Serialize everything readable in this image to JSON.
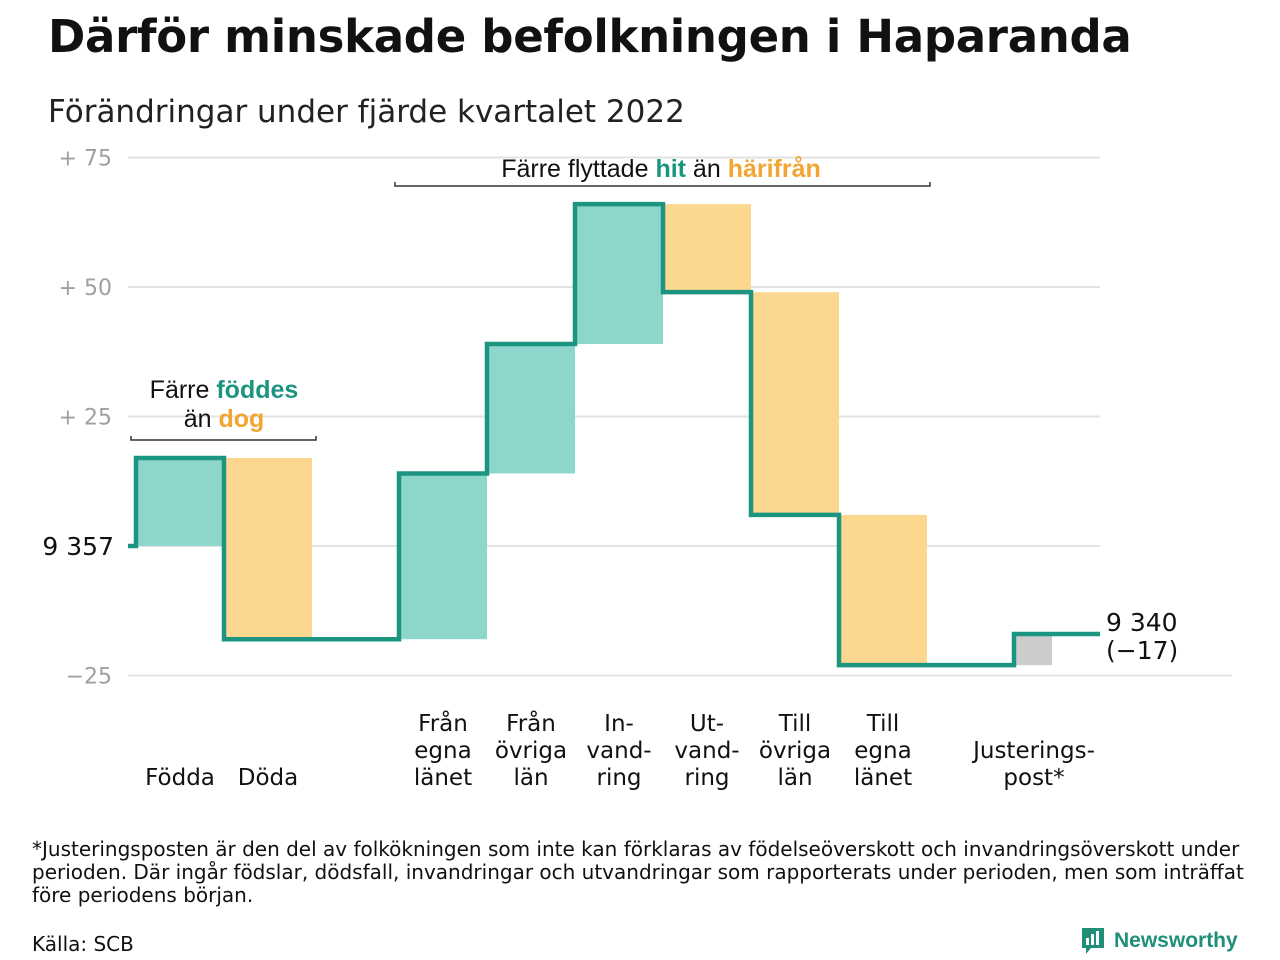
{
  "title": "Därför minskade befolkningen i Haparanda",
  "subtitle": "Förändringar under fjärde kvartalet 2022",
  "footnote": "*Justeringsposten är den del av folkökningen som inte kan förklaras av födelseöverskott och invandringsöverskott under perioden. Där ingår födslar, dödsfall, invandringar och utvandringar som rapporterats under perioden, men som inträffat före periodens början.",
  "source": "Källa: SCB",
  "brand": "Newsworthy",
  "colors": {
    "increase": "#8dd6cc",
    "decrease": "#fbd78f",
    "adjustment": "#cccccc",
    "line": "#1b9480",
    "teal_text": "#1b9480",
    "orange_text": "#f2a631",
    "grid": "#e3e3e3",
    "tick": "#a0a0a0"
  },
  "chart_data": {
    "type": "waterfall",
    "start_value": 9357,
    "start_label": "9 357",
    "end_label_lines": [
      "9 340",
      "(−17)"
    ],
    "ylim": [
      -25,
      75
    ],
    "yticks": [
      {
        "value": 75,
        "label": "+ 75"
      },
      {
        "value": 50,
        "label": "+ 50"
      },
      {
        "value": 25,
        "label": "+ 25"
      },
      {
        "value": 0,
        "label": ""
      },
      {
        "value": -25,
        "label": "−25"
      }
    ],
    "steps": [
      {
        "label": [
          "Födda"
        ],
        "change": 17,
        "kind": "increase",
        "group": 0
      },
      {
        "label": [
          "Döda"
        ],
        "change": -35,
        "kind": "decrease",
        "group": 0
      },
      {
        "label": [
          "Från",
          "egna",
          "länet"
        ],
        "change": 32,
        "kind": "increase",
        "group": 1
      },
      {
        "label": [
          "Från",
          "övriga",
          "län"
        ],
        "change": 25,
        "kind": "increase",
        "group": 1
      },
      {
        "label": [
          "In-",
          "vand-",
          "ring"
        ],
        "change": 27,
        "kind": "increase",
        "group": 1
      },
      {
        "label": [
          "Ut-",
          "vand-",
          "ring"
        ],
        "change": -17,
        "kind": "decrease",
        "group": 1
      },
      {
        "label": [
          "Till",
          "övriga",
          "län"
        ],
        "change": -43,
        "kind": "decrease",
        "group": 1
      },
      {
        "label": [
          "Till",
          "egna",
          "länet"
        ],
        "change": -29,
        "kind": "decrease",
        "group": 1
      },
      {
        "label": [
          "Justerings-",
          "post*"
        ],
        "change": 6,
        "kind": "adjustment",
        "group": 2
      }
    ],
    "annotations": [
      {
        "parts": [
          {
            "text": "Färre ",
            "style": "plain"
          },
          {
            "text": "föddes",
            "style": "teal"
          }
        ],
        "parts2": [
          {
            "text": "än ",
            "style": "plain"
          },
          {
            "text": "dog",
            "style": "orange"
          }
        ]
      },
      {
        "parts": [
          {
            "text": "Färre flyttade ",
            "style": "plain"
          },
          {
            "text": "hit",
            "style": "teal"
          },
          {
            "text": " än ",
            "style": "plain"
          },
          {
            "text": "härifrån",
            "style": "orange"
          }
        ]
      }
    ]
  }
}
